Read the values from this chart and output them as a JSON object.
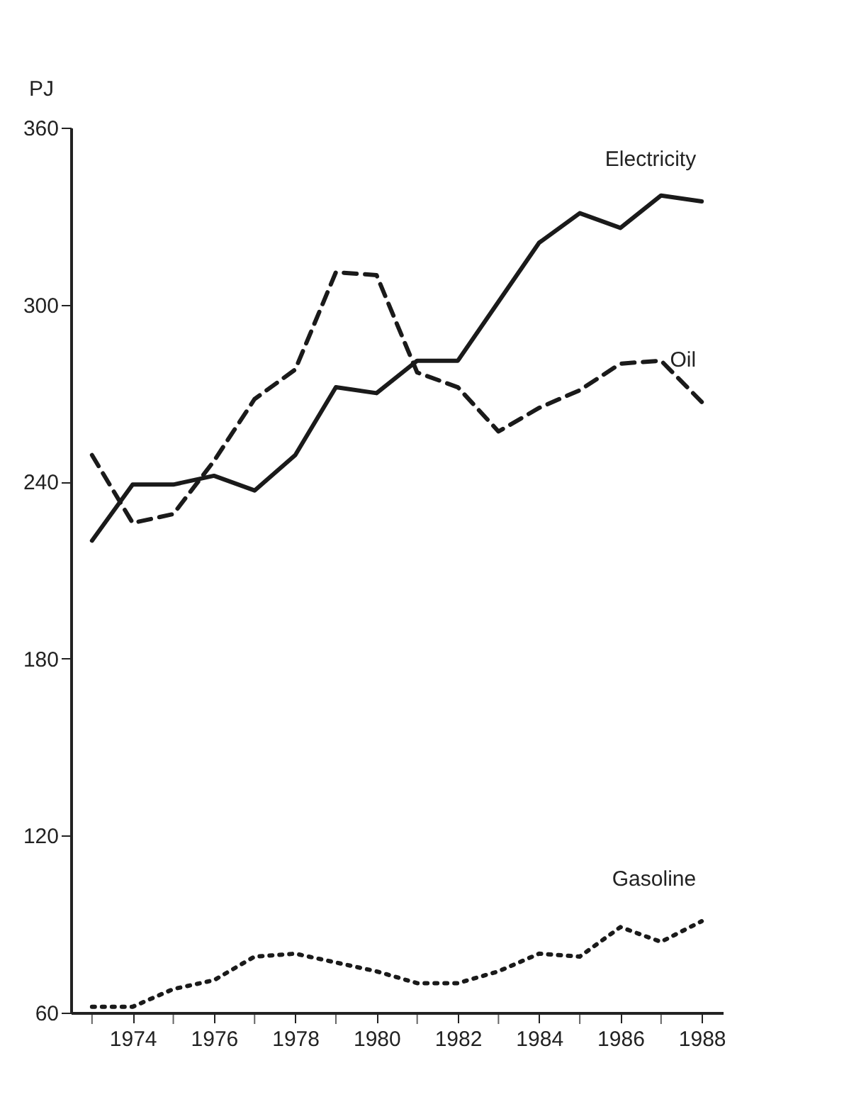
{
  "chart_data": {
    "type": "line",
    "ylabel": "PJ",
    "x": [
      1973,
      1974,
      1975,
      1976,
      1977,
      1978,
      1979,
      1980,
      1981,
      1982,
      1983,
      1984,
      1985,
      1986,
      1987,
      1988
    ],
    "series": [
      {
        "name": "Electricity",
        "color": "#1a1a1a",
        "line_style": "solid",
        "values": [
          220,
          239,
          239,
          242,
          237,
          249,
          272,
          270,
          281,
          281,
          301,
          321,
          331,
          326,
          337,
          335
        ]
      },
      {
        "name": "Oil",
        "color": "#1a1a1a",
        "line_style": "dashed",
        "values": [
          249,
          226,
          229,
          247,
          268,
          278,
          311,
          310,
          277,
          272,
          257,
          265,
          271,
          280,
          281,
          267
        ]
      },
      {
        "name": "Gasoline",
        "color": "#1a1a1a",
        "line_style": "dotted",
        "values": [
          62,
          62,
          68,
          71,
          79,
          80,
          77,
          74,
          70,
          70,
          74,
          80,
          79,
          89,
          84,
          91
        ]
      }
    ],
    "xlim": [
      1972.48,
      1988.52
    ],
    "xticks": [
      {
        "value": 1973,
        "label": null
      },
      1974,
      {
        "value": 1975,
        "label": null
      },
      1976,
      {
        "value": 1977,
        "label": null
      },
      1978,
      {
        "value": 1979,
        "label": null
      },
      1980,
      {
        "value": 1981,
        "label": null
      },
      1982,
      {
        "value": 1983,
        "label": null
      },
      1984,
      {
        "value": 1985,
        "label": null
      },
      1986,
      {
        "value": 1987,
        "label": null
      },
      1988
    ],
    "ylim": [
      60,
      360
    ],
    "yticks": [
      60,
      120,
      180,
      240,
      300,
      360
    ],
    "grid": false,
    "marker": "none"
  }
}
